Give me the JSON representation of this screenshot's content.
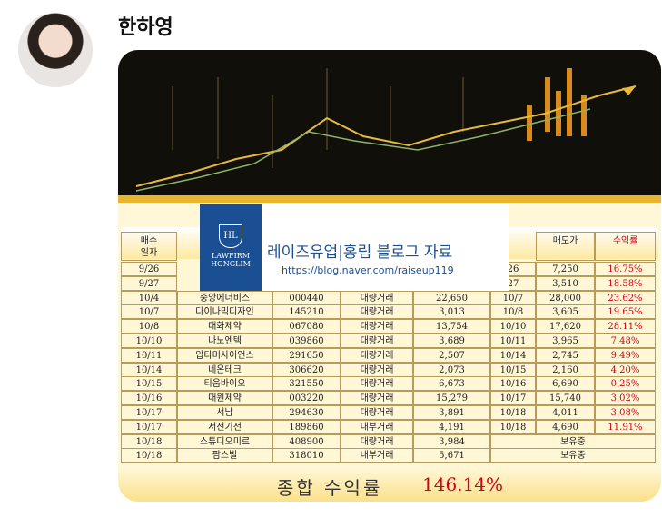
{
  "sender": {
    "name": "한하영"
  },
  "image": {
    "watermark": {
      "logo_line1": "LAWFIRM",
      "logo_line2": "HONGLIM",
      "logo_mark": "HL",
      "title": "레이즈유업|홍림 블로그 자료",
      "url": "https://blog.naver.com/raiseup119"
    },
    "table": {
      "header": [
        "매수\n일자",
        null,
        null,
        null,
        null,
        null,
        "매도가",
        "수익률"
      ],
      "rows": [
        [
          "9/26",
          null,
          null,
          null,
          null,
          "26",
          "7,250",
          "16.75%"
        ],
        [
          "9/27",
          null,
          null,
          null,
          null,
          "27",
          "3,510",
          "18.58%"
        ],
        [
          "10/4",
          "중앙에너비스",
          "000440",
          "대량거래",
          "22,650",
          "10/7",
          "28,000",
          "23.62%"
        ],
        [
          "10/7",
          "다이나믹디자인",
          "145210",
          "대량거래",
          "3,013",
          "10/8",
          "3,605",
          "19.65%"
        ],
        [
          "10/8",
          "대화제약",
          "067080",
          "대량거래",
          "13,754",
          "10/10",
          "17,620",
          "28.11%"
        ],
        [
          "10/10",
          "나노엔텍",
          "039860",
          "대량거래",
          "3,689",
          "10/11",
          "3,965",
          "7.48%"
        ],
        [
          "10/11",
          "압타머사이언스",
          "291650",
          "대량거래",
          "2,507",
          "10/14",
          "2,745",
          "9.49%"
        ],
        [
          "10/14",
          "네온테크",
          "306620",
          "대량거래",
          "2,073",
          "10/15",
          "2,160",
          "4.20%"
        ],
        [
          "10/15",
          "티움바이오",
          "321550",
          "대량거래",
          "6,673",
          "10/16",
          "6,690",
          "0.25%"
        ],
        [
          "10/16",
          "대원제약",
          "003220",
          "대량거래",
          "15,279",
          "10/17",
          "15,740",
          "3.02%"
        ],
        [
          "10/17",
          "서남",
          "294630",
          "대량거래",
          "3,891",
          "10/18",
          "4,011",
          "3.08%"
        ],
        [
          "10/17",
          "서전기전",
          "189860",
          "내부거래",
          "4,191",
          "10/18",
          "4,690",
          "11.91%"
        ],
        [
          "10/18",
          "스튜디오미르",
          "408900",
          "대량거래",
          "3,984",
          "보유중"
        ],
        [
          "10/18",
          "팜스빌",
          "318010",
          "내부거래",
          "5,671",
          "보유중"
        ]
      ],
      "total_label": "종합 수익률",
      "total_value": "146.14%"
    }
  }
}
